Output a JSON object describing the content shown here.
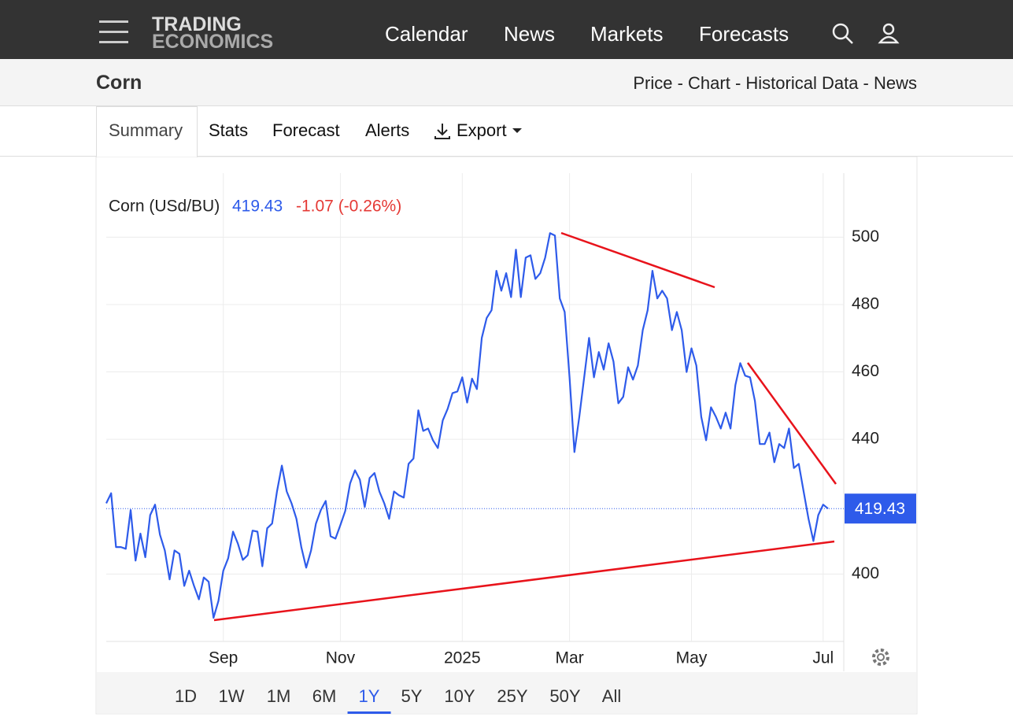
{
  "nav": {
    "brand_top": "TRADING",
    "brand_bottom": "ECONOMICS",
    "items": [
      "Calendar",
      "News",
      "Markets",
      "Forecasts"
    ]
  },
  "header": {
    "title": "Corn",
    "links": "Price - Chart - Historical Data - News"
  },
  "tabs": [
    "Summary",
    "Stats",
    "Forecast",
    "Alerts",
    "Export"
  ],
  "ranges": [
    "1D",
    "1W",
    "1M",
    "6M",
    "1Y",
    "5Y",
    "10Y",
    "25Y",
    "50Y",
    "All"
  ],
  "active_range": "1Y",
  "chart_data": {
    "type": "line",
    "change": "-1.07 (-0.26%)",
    "categories": [
      null,
      null,
      null,
      null,
      null,
      null,
      null,
      null,
      null,
      null,
      null,
      null,
      null,
      null,
      null,
      null,
      null,
      null,
      null,
      null,
      null,
      null,
      null,
      null,
      "Sep",
      null,
      null,
      null,
      null,
      null,
      null,
      null,
      null,
      null,
      null,
      null,
      null,
      null,
      null,
      null,
      null,
      null,
      null,
      null,
      null,
      null,
      null,
      null,
      "Nov",
      null,
      null,
      null,
      null,
      null,
      null,
      null,
      null,
      null,
      null,
      null,
      null,
      null,
      null,
      null,
      null,
      null,
      null,
      null,
      null,
      null,
      null,
      null,
      null,
      "2025",
      null,
      null,
      null,
      null,
      null,
      null,
      null,
      null,
      null,
      null,
      null,
      null,
      null,
      null,
      null,
      null,
      null,
      null,
      null,
      null,
      null,
      "Mar",
      null,
      null,
      null,
      null,
      null,
      null,
      null,
      null,
      null,
      null,
      null,
      null,
      null,
      null,
      null,
      null,
      null,
      null,
      null,
      null,
      null,
      null,
      null,
      null,
      "May",
      null,
      null,
      null,
      null,
      null,
      null,
      null,
      null,
      null,
      null,
      null,
      null,
      null,
      null,
      null,
      null,
      null,
      null,
      null,
      null,
      null,
      null,
      null,
      null,
      null,
      null,
      "Jul",
      null
    ],
    "series": [
      {
        "name": "Corn (USd/BU)",
        "color": "#2e5bea",
        "values": [
          421,
          424,
          408,
          408,
          407.5,
          419,
          404,
          412,
          405,
          417.5,
          420.6,
          411.7,
          407,
          398.4,
          407,
          406,
          396.5,
          401,
          396.5,
          392.5,
          399,
          397.7,
          387,
          392,
          401,
          404.7,
          412.6,
          409,
          404.2,
          405.6,
          412.9,
          412.6,
          402.3,
          413.6,
          415,
          424.5,
          432.2,
          424.5,
          421,
          416.4,
          408,
          401.9,
          407,
          415,
          419,
          421.7,
          411.2,
          410.5,
          414.5,
          418.7,
          426.9,
          430.8,
          428,
          419.9,
          428.5,
          430,
          424.5,
          421,
          416.4,
          424.5,
          423.4,
          422.7,
          432.7,
          434.3,
          448.6,
          442.5,
          443.2,
          439.7,
          437.4,
          445.6,
          449,
          453.7,
          454.2,
          458.4,
          450.9,
          458,
          454.9,
          470.1,
          476,
          478.3,
          490,
          484.1,
          489.3,
          482.2,
          496.3,
          482.2,
          493.9,
          494.6,
          487.6,
          489.3,
          493.9,
          501.2,
          500.5,
          481.8,
          477.8,
          458.4,
          436.2,
          446.7,
          458.4,
          470.1,
          458.4,
          465.9,
          460.7,
          468.5,
          463.1,
          450.7,
          452.6,
          461.4,
          457.7,
          461.9,
          472.4,
          478.3,
          490,
          481.8,
          484.1,
          481.8,
          472.4,
          477.8,
          472.4,
          460,
          467,
          461.9,
          446.7,
          439.7,
          449.5,
          446.7,
          443.2,
          447.9,
          443.2,
          456.1,
          462.6,
          458.9,
          458.4,
          451.4,
          438.6,
          438.6,
          442,
          433.2,
          438.6,
          437.4,
          443.2,
          431.5,
          432.7,
          424.5,
          416.4,
          409.8,
          417.5,
          420.6,
          419.43
        ]
      }
    ],
    "ylim": [
      380,
      519
    ],
    "yticks": [
      400,
      440,
      460,
      480,
      500
    ],
    "grid": true,
    "change_color": "#e53935"
  }
}
